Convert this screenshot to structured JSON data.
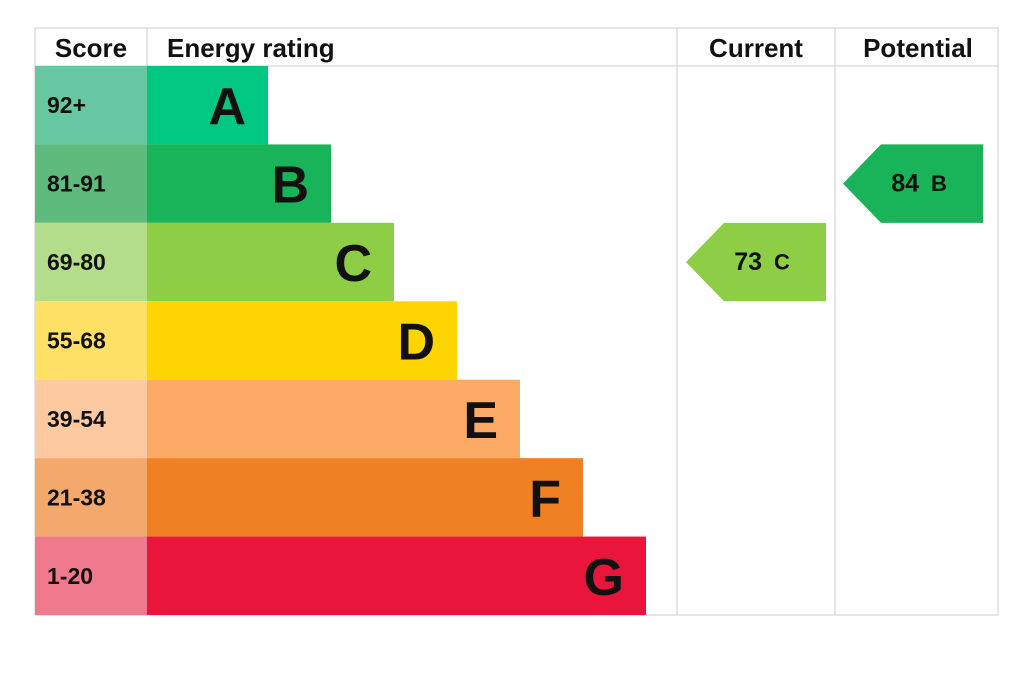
{
  "header": {
    "score": "Score",
    "rating": "Energy rating",
    "current": "Current",
    "potential": "Potential"
  },
  "bands": [
    {
      "score": "92+",
      "letter": "A",
      "color": "#00c781",
      "score_color": "#66c7a1"
    },
    {
      "score": "81-91",
      "letter": "B",
      "color": "#19b459",
      "score_color": "#5fba7d"
    },
    {
      "score": "69-80",
      "letter": "C",
      "color": "#8dce46",
      "score_color": "#b4dd8b"
    },
    {
      "score": "55-68",
      "letter": "D",
      "color": "#ffd500",
      "score_color": "#ffe066"
    },
    {
      "score": "39-54",
      "letter": "E",
      "color": "#fcaa65",
      "score_color": "#fcc9a0"
    },
    {
      "score": "21-38",
      "letter": "F",
      "color": "#ef8023",
      "score_color": "#f3a86c"
    },
    {
      "score": "1-20",
      "letter": "G",
      "color": "#e9153b",
      "score_color": "#f07a8d"
    }
  ],
  "current": {
    "value": 73,
    "letter": "C"
  },
  "potential": {
    "value": 84,
    "letter": "B"
  }
}
